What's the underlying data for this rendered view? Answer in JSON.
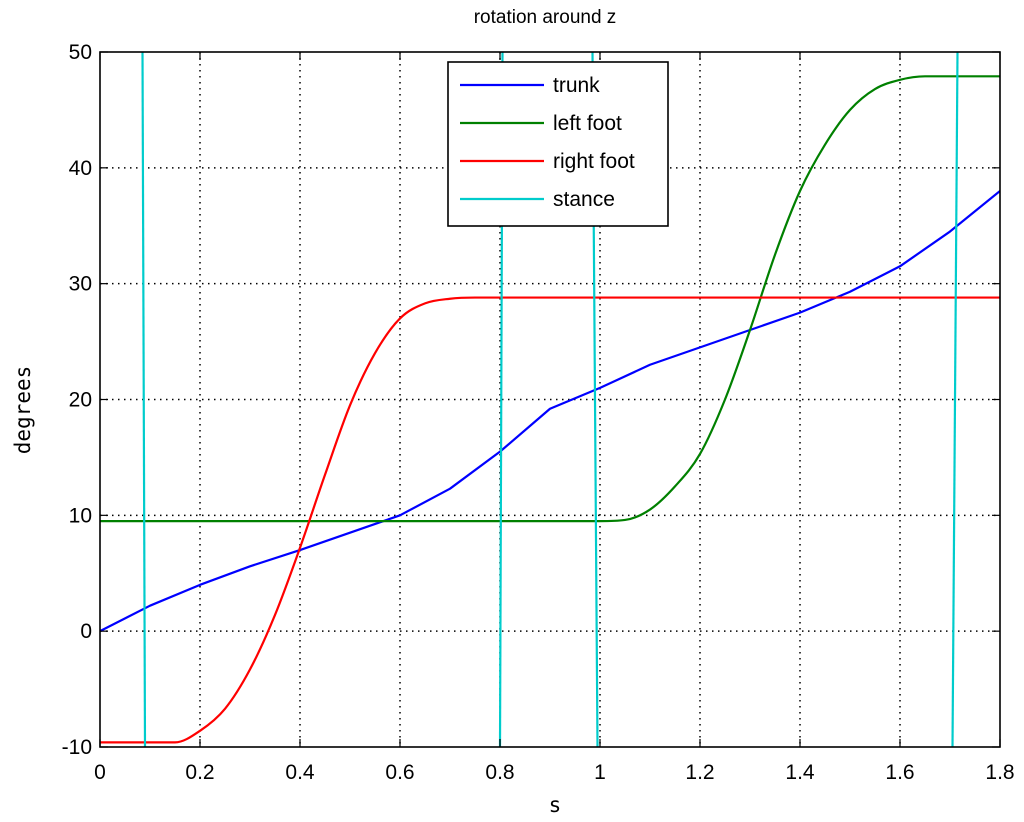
{
  "chart_data": {
    "type": "line",
    "title": "rotation around z",
    "xlabel": "s",
    "ylabel": "degrees",
    "xlim": [
      0,
      1.8
    ],
    "ylim": [
      -10,
      50
    ],
    "xticks": [
      "0",
      "0.2",
      "0.4",
      "0.6",
      "0.8",
      "1",
      "1.2",
      "1.4",
      "1.6",
      "1.8"
    ],
    "yticks": [
      "-10",
      "0",
      "10",
      "20",
      "30",
      "40",
      "50"
    ],
    "grid": true,
    "legend_position": "top-center",
    "series": [
      {
        "name": "trunk",
        "color": "#0000ff",
        "x": [
          0,
          0.1,
          0.2,
          0.3,
          0.4,
          0.5,
          0.6,
          0.7,
          0.8,
          0.9,
          1.0,
          1.1,
          1.2,
          1.3,
          1.4,
          1.5,
          1.6,
          1.7,
          1.8
        ],
        "y": [
          0,
          2.2,
          4.0,
          5.6,
          7.0,
          8.5,
          10.0,
          12.3,
          15.5,
          19.2,
          21.0,
          23.0,
          24.5,
          26.0,
          27.5,
          29.3,
          31.5,
          34.5,
          38.0
        ]
      },
      {
        "name": "left foot",
        "color": "#008000",
        "x": [
          0,
          0.5,
          1.0,
          1.05,
          1.1,
          1.15,
          1.2,
          1.25,
          1.3,
          1.35,
          1.4,
          1.45,
          1.5,
          1.55,
          1.6,
          1.65,
          1.7,
          1.8
        ],
        "y": [
          9.5,
          9.5,
          9.5,
          9.6,
          10.5,
          12.5,
          15.3,
          20.0,
          26.0,
          32.5,
          38.0,
          42.0,
          45.0,
          46.8,
          47.6,
          47.9,
          47.9,
          47.9
        ],
        "curve": "smooth"
      },
      {
        "name": "right foot",
        "color": "#ff0000",
        "x": [
          0,
          0.15,
          0.2,
          0.25,
          0.3,
          0.35,
          0.4,
          0.45,
          0.5,
          0.55,
          0.6,
          0.65,
          0.7,
          0.75,
          0.8,
          1.8
        ],
        "y": [
          -9.6,
          -9.6,
          -8.6,
          -6.7,
          -3.3,
          1.4,
          7.2,
          13.5,
          19.5,
          24.0,
          27.0,
          28.3,
          28.7,
          28.8,
          28.8,
          28.8
        ],
        "curve": "smooth"
      },
      {
        "name": "stance",
        "color": "#00cccc",
        "segments": [
          [
            [
              0.085,
              50
            ],
            [
              0.09,
              -10
            ]
          ],
          [
            [
              0.805,
              50
            ],
            [
              0.8,
              -10
            ]
          ],
          [
            [
              0.985,
              50
            ],
            [
              0.995,
              -10
            ]
          ],
          [
            [
              1.715,
              50
            ],
            [
              1.705,
              -10
            ]
          ]
        ]
      }
    ]
  }
}
